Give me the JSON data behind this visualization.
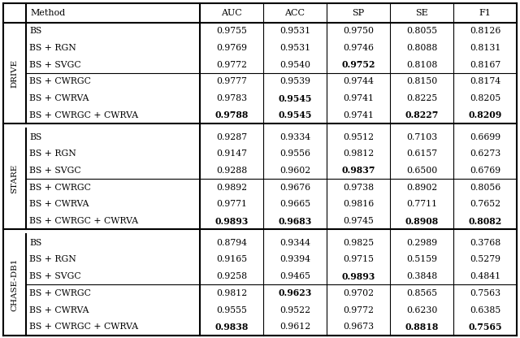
{
  "col_headers": [
    "Method",
    "AUC",
    "ACC",
    "SP",
    "SE",
    "F1"
  ],
  "sections": [
    {
      "label": "DRIVE",
      "rows": [
        {
          "method": "BS",
          "vals": [
            "0.9755",
            "0.9531",
            "0.9750",
            "0.8055",
            "0.8126"
          ],
          "bold": []
        },
        {
          "method": "BS + RGN",
          "vals": [
            "0.9769",
            "0.9531",
            "0.9746",
            "0.8088",
            "0.8131"
          ],
          "bold": []
        },
        {
          "method": "BS + SVGC",
          "vals": [
            "0.9772",
            "0.9540",
            "0.9752",
            "0.8108",
            "0.8167"
          ],
          "bold": [
            2
          ]
        },
        {
          "method": "BS + CWRGC",
          "vals": [
            "0.9777",
            "0.9539",
            "0.9744",
            "0.8150",
            "0.8174"
          ],
          "bold": []
        },
        {
          "method": "BS + CWRVA",
          "vals": [
            "0.9783",
            "0.9545",
            "0.9741",
            "0.8225",
            "0.8205"
          ],
          "bold": [
            1
          ]
        },
        {
          "method": "BS + CWRGC + CWRVA",
          "vals": [
            "0.9788",
            "0.9545",
            "0.9741",
            "0.8227",
            "0.8209"
          ],
          "bold": [
            0,
            1,
            3,
            4
          ]
        }
      ],
      "divider_after": [
        2
      ]
    },
    {
      "label": "STARE",
      "rows": [
        {
          "method": "BS",
          "vals": [
            "0.9287",
            "0.9334",
            "0.9512",
            "0.7103",
            "0.6699"
          ],
          "bold": []
        },
        {
          "method": "BS + RGN",
          "vals": [
            "0.9147",
            "0.9556",
            "0.9812",
            "0.6157",
            "0.6273"
          ],
          "bold": []
        },
        {
          "method": "BS + SVGC",
          "vals": [
            "0.9288",
            "0.9602",
            "0.9837",
            "0.6500",
            "0.6769"
          ],
          "bold": [
            2
          ]
        },
        {
          "method": "BS + CWRGC",
          "vals": [
            "0.9892",
            "0.9676",
            "0.9738",
            "0.8902",
            "0.8056"
          ],
          "bold": []
        },
        {
          "method": "BS + CWRVA",
          "vals": [
            "0.9771",
            "0.9665",
            "0.9816",
            "0.7711",
            "0.7652"
          ],
          "bold": []
        },
        {
          "method": "BS + CWRGC + CWRVA",
          "vals": [
            "0.9893",
            "0.9683",
            "0.9745",
            "0.8908",
            "0.8082"
          ],
          "bold": [
            0,
            1,
            3,
            4
          ]
        }
      ],
      "divider_after": [
        2
      ]
    },
    {
      "label": "CHASE-DB1",
      "rows": [
        {
          "method": "BS",
          "vals": [
            "0.8794",
            "0.9344",
            "0.9825",
            "0.2989",
            "0.3768"
          ],
          "bold": []
        },
        {
          "method": "BS + RGN",
          "vals": [
            "0.9165",
            "0.9394",
            "0.9715",
            "0.5159",
            "0.5279"
          ],
          "bold": []
        },
        {
          "method": "BS + SVGC",
          "vals": [
            "0.9258",
            "0.9465",
            "0.9893",
            "0.3848",
            "0.4841"
          ],
          "bold": [
            2
          ]
        },
        {
          "method": "BS + CWRGC",
          "vals": [
            "0.9812",
            "0.9623",
            "0.9702",
            "0.8565",
            "0.7563"
          ],
          "bold": [
            1
          ]
        },
        {
          "method": "BS + CWRVA",
          "vals": [
            "0.9555",
            "0.9522",
            "0.9772",
            "0.6230",
            "0.6385"
          ],
          "bold": []
        },
        {
          "method": "BS + CWRGC + CWRVA",
          "vals": [
            "0.9838",
            "0.9612",
            "0.9673",
            "0.8818",
            "0.7565"
          ],
          "bold": [
            0,
            3,
            4
          ]
        }
      ],
      "divider_after": [
        2
      ]
    }
  ],
  "font_size": 7.8,
  "header_font_size": 8.0,
  "label_font_size": 7.5
}
